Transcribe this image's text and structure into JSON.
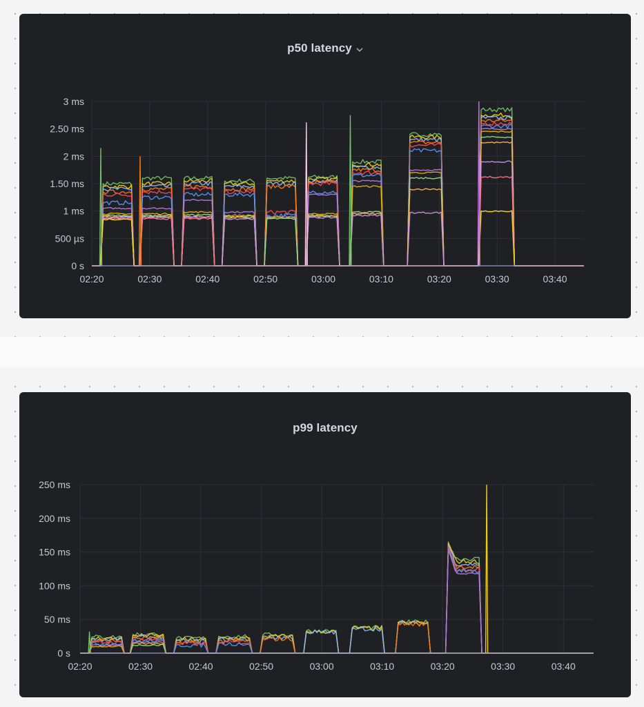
{
  "colors": {
    "panel_bg": "#1f2024",
    "grid": "#2e3036",
    "tick_text": "#c8c9cf",
    "title_text": "#d7d8de",
    "palette": [
      "#73bf69",
      "#f2cc0c",
      "#8ab8ff",
      "#ff780a",
      "#f2495c",
      "#5794f2",
      "#b877d9",
      "#e0b400",
      "#96d98d",
      "#ffb357",
      "#ca95e5",
      "#ff7383",
      "#fade2a",
      "#c4162a",
      "#e8e8f0",
      "#f8c8e0",
      "#c0d8ff",
      "#9be0b0"
    ]
  },
  "panels": [
    {
      "title": "p50 latency",
      "title_icon": "chevron-down-icon",
      "chart_data": {
        "type": "line",
        "title": "p50 latency",
        "x_ticks": [
          "02:20",
          "02:30",
          "02:40",
          "02:50",
          "03:00",
          "03:10",
          "03:20",
          "03:30",
          "03:40"
        ],
        "x_range_minutes": [
          0,
          85
        ],
        "y_ticks": [
          {
            "value": 0,
            "label": "0 s"
          },
          {
            "value": 0.5,
            "label": "500 µs"
          },
          {
            "value": 1,
            "label": "1 ms"
          },
          {
            "value": 1.5,
            "label": "1.50 ms"
          },
          {
            "value": 2,
            "label": "2 ms"
          },
          {
            "value": 2.5,
            "label": "2.50 ms"
          },
          {
            "value": 3,
            "label": "3 ms"
          }
        ],
        "ylim": [
          0,
          3
        ],
        "y_unit": "ms",
        "bursts": [
          {
            "start": 1.5,
            "end": 7.3,
            "levels": [
              1.5,
              1.45,
              1.4,
              1.35,
              1.3,
              1.15,
              1.05,
              0.95,
              0.92,
              0.9,
              0.88,
              0.86,
              0.85
            ],
            "spike": 2.15
          },
          {
            "start": 8.3,
            "end": 14.2,
            "levels": [
              1.6,
              1.5,
              1.45,
              1.4,
              1.35,
              1.25,
              1.05,
              0.95,
              0.92,
              0.9,
              0.88,
              0.86
            ],
            "spike": 2.0
          },
          {
            "start": 15.5,
            "end": 21.2,
            "levels": [
              1.6,
              1.55,
              1.5,
              1.45,
              1.4,
              1.3,
              1.2,
              0.98,
              0.93,
              0.9,
              0.88,
              0.86
            ]
          },
          {
            "start": 22.5,
            "end": 28.5,
            "levels": [
              1.55,
              1.5,
              1.45,
              1.4,
              1.35,
              1.3,
              0.98,
              0.92,
              0.9,
              0.88,
              0.86
            ]
          },
          {
            "start": 29.8,
            "end": 35.6,
            "levels": [
              1.6,
              1.55,
              1.5,
              1.45,
              0.98,
              0.92,
              0.9,
              0.88,
              0.86
            ]
          },
          {
            "start": 37.0,
            "end": 42.8,
            "levels": [
              1.62,
              1.58,
              1.55,
              1.52,
              1.5,
              1.35,
              1.3,
              0.95,
              0.92,
              0.9,
              0.88
            ],
            "spike": 2.62
          },
          {
            "start": 44.6,
            "end": 50.4,
            "levels": [
              1.9,
              1.85,
              1.8,
              1.75,
              1.7,
              1.65,
              1.55,
              1.45,
              0.98,
              0.95,
              0.92
            ],
            "spike": 2.75
          },
          {
            "start": 54.5,
            "end": 60.8,
            "levels": [
              2.4,
              2.35,
              2.3,
              2.25,
              2.2,
              2.1,
              1.75,
              1.7,
              1.6,
              1.4,
              0.97
            ]
          },
          {
            "start": 66.8,
            "end": 73.0,
            "levels": [
              2.85,
              2.75,
              2.7,
              2.65,
              2.6,
              2.55,
              2.5,
              2.45,
              2.35,
              2.25,
              1.9,
              1.62,
              1.0
            ],
            "spike": 3.0
          }
        ]
      }
    },
    {
      "title": "p99 latency",
      "chart_data": {
        "type": "line",
        "title": "p99 latency",
        "x_ticks": [
          "02:20",
          "02:30",
          "02:40",
          "02:50",
          "03:00",
          "03:10",
          "03:20",
          "03:30",
          "03:40"
        ],
        "x_range_minutes": [
          0,
          85
        ],
        "y_ticks": [
          {
            "value": 0,
            "label": "0 s"
          },
          {
            "value": 50,
            "label": "50 ms"
          },
          {
            "value": 100,
            "label": "100 ms"
          },
          {
            "value": 150,
            "label": "150 ms"
          },
          {
            "value": 200,
            "label": "200 ms"
          },
          {
            "value": 250,
            "label": "250 ms"
          }
        ],
        "ylim": [
          0,
          250
        ],
        "y_unit": "ms",
        "bursts": [
          {
            "start": 1.5,
            "end": 7.3,
            "levels": [
              24,
              22,
              20,
              18,
              16,
              14,
              12,
              10
            ],
            "spike": 32
          },
          {
            "start": 8.3,
            "end": 14.2,
            "levels": [
              28,
              26,
              24,
              22,
              20,
              18,
              16,
              14,
              12
            ]
          },
          {
            "start": 15.5,
            "end": 21.2,
            "levels": [
              22,
              20,
              18,
              16,
              14,
              12
            ]
          },
          {
            "start": 22.5,
            "end": 28.5,
            "levels": [
              25,
              22,
              20,
              18,
              16,
              14
            ]
          },
          {
            "start": 29.8,
            "end": 35.6,
            "levels": [
              27,
              25,
              23,
              21
            ]
          },
          {
            "start": 37.0,
            "end": 42.8,
            "levels": [
              33,
              32,
              31
            ]
          },
          {
            "start": 44.6,
            "end": 50.4,
            "levels": [
              38,
              37,
              36
            ]
          },
          {
            "start": 52.2,
            "end": 58.0,
            "levels": [
              46,
              45,
              44,
              43
            ]
          },
          {
            "start": 60.5,
            "end": 66.5,
            "levels": [
              140,
              136,
              132,
              128,
              125,
              122,
              118
            ],
            "peak": 165,
            "spike": 250,
            "spike_at": 67.3
          }
        ]
      }
    }
  ]
}
